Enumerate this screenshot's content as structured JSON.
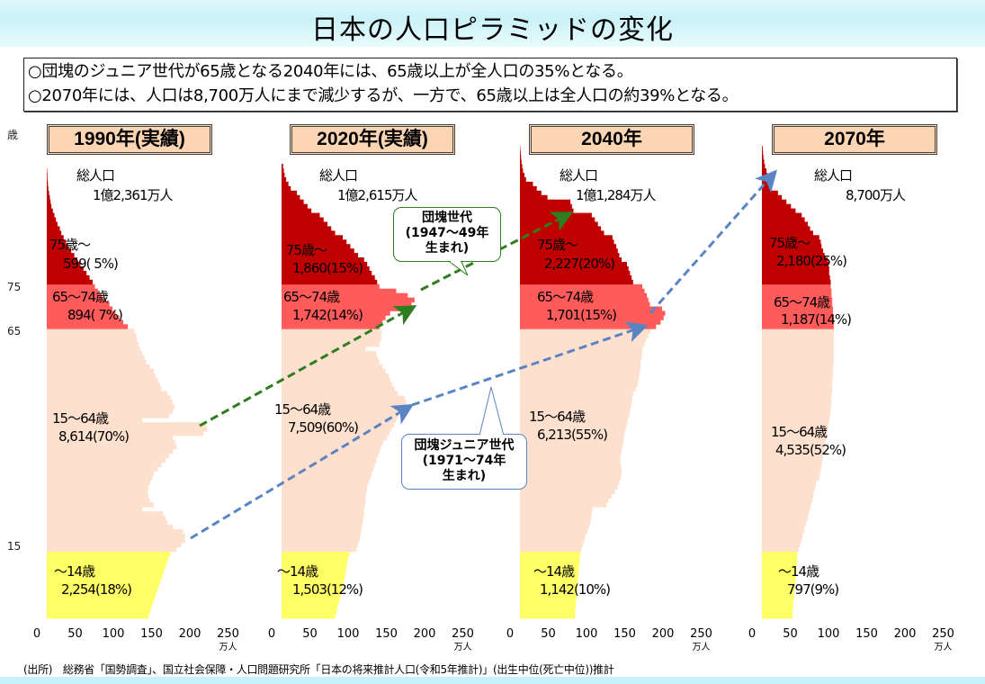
{
  "header": {
    "title": "日本の人口ピラミッドの変化"
  },
  "notes": [
    "○団塊のジュニア世代が65歳となる2040年には、65歳以上が全人口の35%となる。",
    "○2070年には、人口は8,700万人にまで減少するが、一方で、65歳以上は全人口の約39%となる。"
  ],
  "axis": {
    "ticks": [
      "0",
      "50",
      "100",
      "150",
      "200",
      "250"
    ],
    "unit": "万人",
    "age_unit": "歳",
    "age_ticks": [
      "75",
      "65",
      "15"
    ]
  },
  "colors": {
    "age75plus": "#c00000",
    "age65_74": "#ff5b5b",
    "age15_64": "#fde0cd",
    "age0_14": "#ffff66",
    "title_bg": "#fcd5b4",
    "green_arrow": "#2e7d1e",
    "blue_arrow": "#5b84c4"
  },
  "panels": [
    {
      "title": "1990年(実績)",
      "total_label": "総人口",
      "total_value": "1億2,361万人",
      "groups": [
        {
          "label": "75歳～",
          "value": "599( 5%)"
        },
        {
          "label": "65～74歳",
          "value": "894( 7%)"
        },
        {
          "label": "15～64歳",
          "value": "8,614(70%)"
        },
        {
          "label": "～14歳",
          "value": "2,254(18%)"
        }
      ]
    },
    {
      "title": "2020年(実績)",
      "total_label": "総人口",
      "total_value": "1億2,615万人",
      "groups": [
        {
          "label": "75歳～",
          "value": "1,860(15%)"
        },
        {
          "label": "65～74歳",
          "value": "1,742(14%)"
        },
        {
          "label": "15～64歳",
          "value": "7,509(60%)"
        },
        {
          "label": "～14歳",
          "value": "1,503(12%)"
        }
      ]
    },
    {
      "title": "2040年",
      "total_label": "総人口",
      "total_value": "1億1,284万人",
      "groups": [
        {
          "label": "75歳～",
          "value": "2,227(20%)"
        },
        {
          "label": "65～74歳",
          "value": "1,701(15%)"
        },
        {
          "label": "15～64歳",
          "value": "6,213(55%)"
        },
        {
          "label": "～14歳",
          "value": "1,142(10%)"
        }
      ]
    },
    {
      "title": "2070年",
      "total_label": "総人口",
      "total_value": "8,700万人",
      "groups": [
        {
          "label": "75歳～",
          "value": "2,180(25%)"
        },
        {
          "label": "65～74歳",
          "value": "1,187(14%)"
        },
        {
          "label": "15～64歳",
          "value": "4,535(52%)"
        },
        {
          "label": "～14歳",
          "value": "797(9%)"
        }
      ]
    }
  ],
  "callouts": {
    "dankai": [
      "団塊世代",
      "(1947～49年",
      "生まれ)"
    ],
    "junior": [
      "団塊ジュニア世代",
      "(1971～74年",
      "生まれ)"
    ]
  },
  "source": "(出所)　総務省「国勢調査」、国立社会保障・人口問題研究所「日本の将来推計人口(令和5年推計)」(出生中位(死亡中位))推計",
  "chart_data": {
    "type": "bar",
    "orientation": "horizontal",
    "x_unit": "万人",
    "y_unit": "歳",
    "xlim": [
      0,
      250
    ],
    "x_ticks": [
      0,
      50,
      100,
      150,
      200,
      250
    ],
    "y_ticks": [
      15,
      65,
      75
    ],
    "series": [
      {
        "name": "1990年(実績)",
        "age_start": 0,
        "values": [
          133,
          135,
          137,
          139,
          141,
          143,
          145,
          147,
          149,
          151,
          153,
          155,
          157,
          159,
          162,
          170,
          176,
          181,
          181,
          178,
          165,
          158,
          155,
          152,
          125,
          140,
          135,
          133,
          132,
          133,
          135,
          138,
          140,
          145,
          150,
          155,
          160,
          165,
          170,
          168,
          165,
          205,
          210,
          208,
          125,
          160,
          165,
          167,
          165,
          162,
          158,
          150,
          148,
          145,
          142,
          140,
          135,
          130,
          128,
          125,
          122,
          120,
          118,
          117,
          115,
          106,
          100,
          95,
          90,
          86,
          82,
          77,
          72,
          67,
          63,
          60,
          56,
          52,
          48,
          44,
          40,
          36,
          32,
          28,
          25,
          22,
          19,
          17,
          14,
          12,
          10,
          8,
          6,
          5,
          4,
          3,
          2,
          1.5,
          1,
          0.8,
          0.5
        ]
      },
      {
        "name": "2020年(実績)",
        "age_start": 0,
        "values": [
          70,
          72,
          73,
          75,
          76,
          78,
          79,
          80,
          82,
          83,
          84,
          85,
          86,
          87,
          89,
          98,
          100,
          102,
          103,
          104,
          105,
          106,
          107,
          108,
          108,
          109,
          110,
          110,
          111,
          112,
          114,
          116,
          118,
          120,
          122,
          124,
          126,
          128,
          130,
          133,
          138,
          141,
          144,
          147,
          150,
          153,
          160,
          162,
          163,
          161,
          152,
          148,
          145,
          142,
          140,
          136,
          132,
          128,
          126,
          124,
          110,
          128,
          130,
          131,
          130,
          128,
          132,
          136,
          142,
          160,
          170,
          174,
          165,
          150,
          128,
          125,
          122,
          118,
          115,
          112,
          108,
          100,
          95,
          90,
          85,
          80,
          70,
          65,
          60,
          55,
          50,
          39,
          34,
          29,
          24,
          20,
          12,
          9,
          6,
          4,
          3,
          2
        ]
      },
      {
        "name": "2040年",
        "age_start": 0,
        "values": [
          72,
          72,
          73,
          73,
          74,
          74,
          75,
          75,
          76,
          76,
          77,
          77,
          78,
          78,
          79,
          80,
          82,
          84,
          86,
          88,
          90,
          92,
          93,
          94,
          95,
          113,
          116,
          120,
          124,
          128,
          130,
          132,
          133,
          133,
          132,
          131,
          132,
          133,
          134,
          135,
          136,
          137,
          138,
          140,
          141,
          143,
          144,
          145,
          146,
          147,
          148,
          152,
          154,
          155,
          156,
          157,
          158,
          158,
          159,
          160,
          160,
          163,
          165,
          168,
          171,
          178,
          184,
          188,
          190,
          186,
          170,
          168,
          166,
          163,
          160,
          148,
          146,
          144,
          142,
          140,
          133,
          130,
          128,
          126,
          123,
          121,
          110,
          106,
          102,
          98,
          94,
          70,
          68,
          66,
          36,
          28,
          22,
          17,
          8,
          6,
          4,
          3,
          2,
          1.5,
          1,
          0.5
        ]
      },
      {
        "name": "2070年",
        "age_start": 0,
        "values": [
          40,
          40,
          41,
          41,
          42,
          42,
          43,
          43,
          44,
          44,
          45,
          45,
          46,
          46,
          46,
          48,
          50,
          52,
          53,
          55,
          56,
          58,
          60,
          61,
          63,
          64,
          66,
          67,
          68,
          70,
          71,
          75,
          76,
          77,
          78,
          79,
          80,
          81,
          82,
          83,
          84,
          85,
          86,
          87,
          88,
          89,
          90,
          90,
          91,
          91,
          91,
          92,
          92,
          92,
          93,
          93,
          93,
          94,
          94,
          94,
          94,
          94,
          94,
          94,
          94,
          94,
          94,
          94,
          93,
          93,
          92,
          92,
          91,
          91,
          90,
          90,
          89,
          88,
          88,
          87,
          86,
          82,
          80,
          78,
          77,
          75,
          67,
          63,
          60,
          56,
          52,
          44,
          38,
          32,
          26,
          21,
          13,
          11,
          9,
          7,
          6,
          4,
          3,
          2,
          1.5,
          1
        ]
      }
    ]
  }
}
